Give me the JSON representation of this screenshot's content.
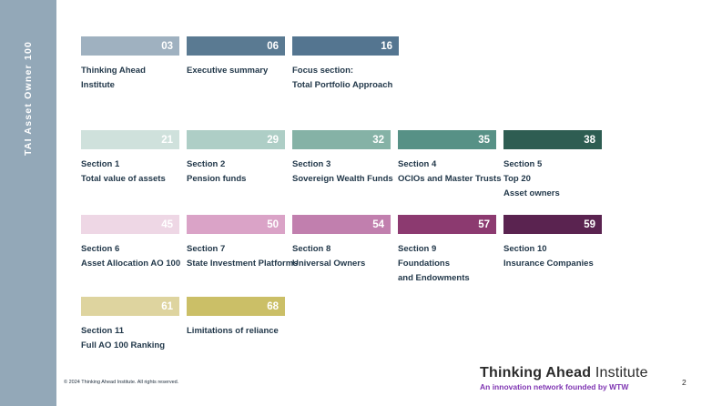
{
  "sidebar": {
    "title": "TAI Asset Owner 100"
  },
  "toc": {
    "rows": [
      {
        "items": [
          {
            "number": "03",
            "color": "#9fb1c0",
            "label_lines": [
              "Thinking Ahead",
              "Institute"
            ]
          },
          {
            "number": "06",
            "color": "#5a7a92",
            "label_lines": [
              "Executive summary"
            ]
          },
          {
            "number": "16",
            "color": "#547590",
            "label_lines": [
              "Focus section:",
              "Total Portfolio Approach"
            ]
          }
        ]
      },
      {
        "items": [
          {
            "number": "21",
            "color": "#cfe1dc",
            "label_lines": [
              "Section 1",
              "Total value of assets"
            ]
          },
          {
            "number": "29",
            "color": "#aecec6",
            "label_lines": [
              "Section 2",
              "Pension funds"
            ]
          },
          {
            "number": "32",
            "color": "#85b2a6",
            "label_lines": [
              "Section 3",
              "Sovereign Wealth Funds"
            ]
          },
          {
            "number": "35",
            "color": "#579186",
            "label_lines": [
              "Section 4",
              "OCIOs and Master Trusts"
            ]
          },
          {
            "number": "38",
            "color": "#2e5d52",
            "label_lines": [
              "Section 5",
              "Top 20",
              "Asset owners"
            ]
          }
        ]
      },
      {
        "items": [
          {
            "number": "45",
            "color": "#eed7e5",
            "label_lines": [
              "Section 6",
              "Asset Allocation AO 100"
            ]
          },
          {
            "number": "50",
            "color": "#daa3c7",
            "label_lines": [
              "Section 7",
              "State Investment Platforms"
            ]
          },
          {
            "number": "54",
            "color": "#c17fae",
            "label_lines": [
              "Section 8",
              "Universal Owners"
            ]
          },
          {
            "number": "57",
            "color": "#8c3a70",
            "label_lines": [
              "Section 9",
              "Foundations",
              "and Endowments"
            ]
          },
          {
            "number": "59",
            "color": "#5a2350",
            "label_lines": [
              "Section 10",
              "Insurance Companies"
            ]
          }
        ]
      },
      {
        "items": [
          {
            "number": "61",
            "color": "#ded49f",
            "label_lines": [
              "Section 11",
              "Full AO 100 Ranking"
            ]
          },
          {
            "number": "68",
            "color": "#cbbf67",
            "label_lines": [
              "Limitations of reliance"
            ]
          }
        ]
      }
    ]
  },
  "footer": {
    "copyright": "© 2024 Thinking Ahead Institute. All rights reserved.",
    "logo": {
      "bold": "Thinking Ahead",
      "regular": " Institute",
      "tagline": "An innovation network founded by WTW",
      "tagline_color": "#7f35b2"
    },
    "page_number": "2"
  }
}
